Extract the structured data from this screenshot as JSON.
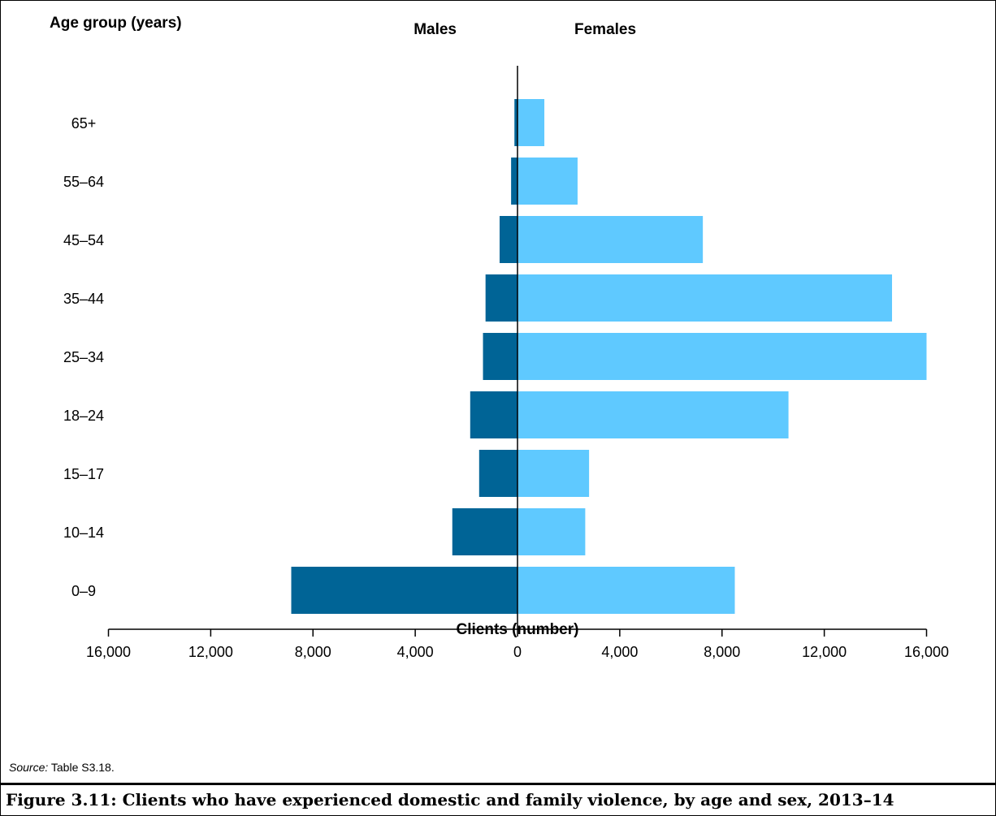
{
  "chart_data": {
    "type": "bar",
    "orientation": "horizontal-diverging",
    "yaxis_title": "Age group (years)",
    "xlabel": "Clients (number)",
    "categories": [
      "0–9",
      "10–14",
      "15–17",
      "18–24",
      "25–34",
      "35–44",
      "45–54",
      "55–64",
      "65+"
    ],
    "series": [
      {
        "name": "Males",
        "color": "#006496",
        "values": [
          8850,
          2550,
          1500,
          1850,
          1350,
          1250,
          700,
          250,
          120
        ]
      },
      {
        "name": "Females",
        "color": "#5fc9ff",
        "values": [
          8500,
          2650,
          2800,
          10600,
          16000,
          14650,
          7250,
          2350,
          1050
        ]
      }
    ],
    "xlim": [
      -16000,
      16000
    ],
    "xticks": [
      -16000,
      -12000,
      -8000,
      -4000,
      0,
      4000,
      8000,
      12000,
      16000
    ],
    "xtick_labels": [
      "16,000",
      "12,000",
      "8,000",
      "4,000",
      "0",
      "4,000",
      "8,000",
      "12,000",
      "16,000"
    ],
    "grid": false,
    "legend": "top-center"
  },
  "source": {
    "label": "Source:",
    "text": " Table S3.18."
  },
  "caption": "Figure 3.11: Clients who have experienced domestic and family violence, by age and sex, 2013–14"
}
